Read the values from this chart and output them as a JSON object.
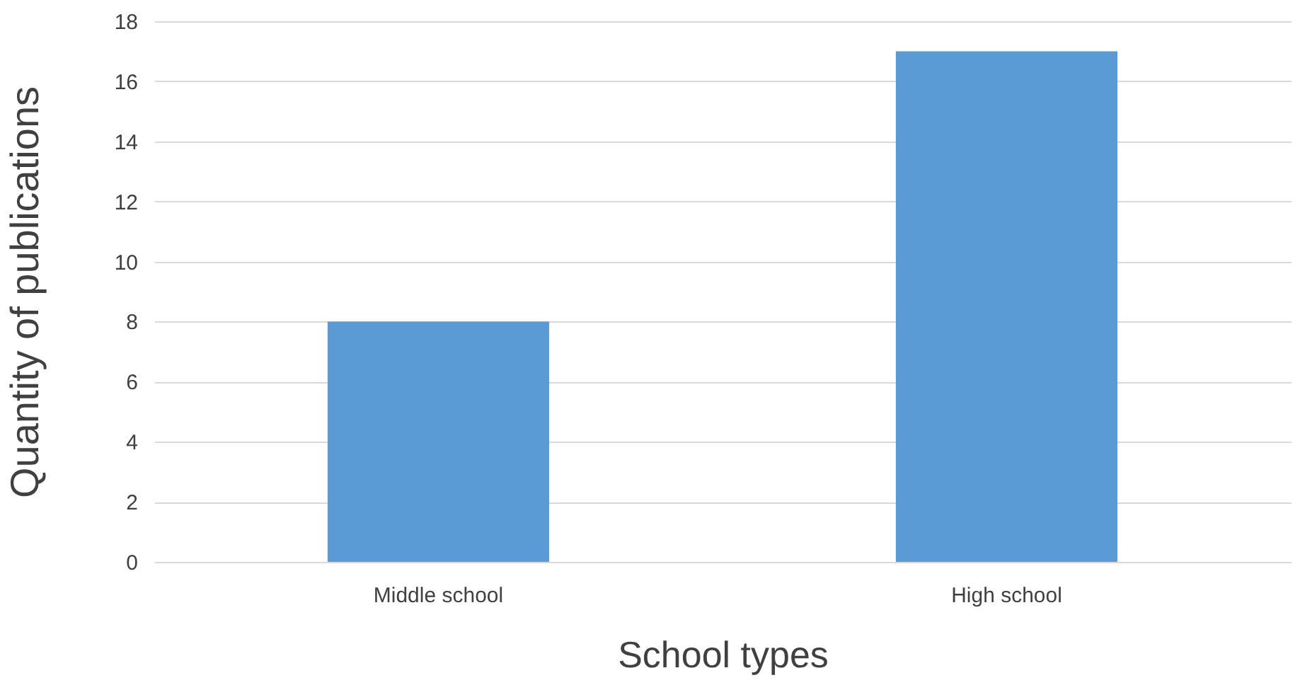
{
  "chart_data": {
    "type": "bar",
    "xlabel": "School types",
    "ylabel": "Quantity of publications",
    "categories": [
      "Middle school",
      "High school"
    ],
    "values": [
      8,
      17
    ],
    "color": "#5b9bd5",
    "ylim": [
      0,
      18
    ],
    "yticks": [
      0,
      2,
      4,
      6,
      8,
      10,
      12,
      14,
      16,
      18
    ],
    "grid": "y"
  }
}
